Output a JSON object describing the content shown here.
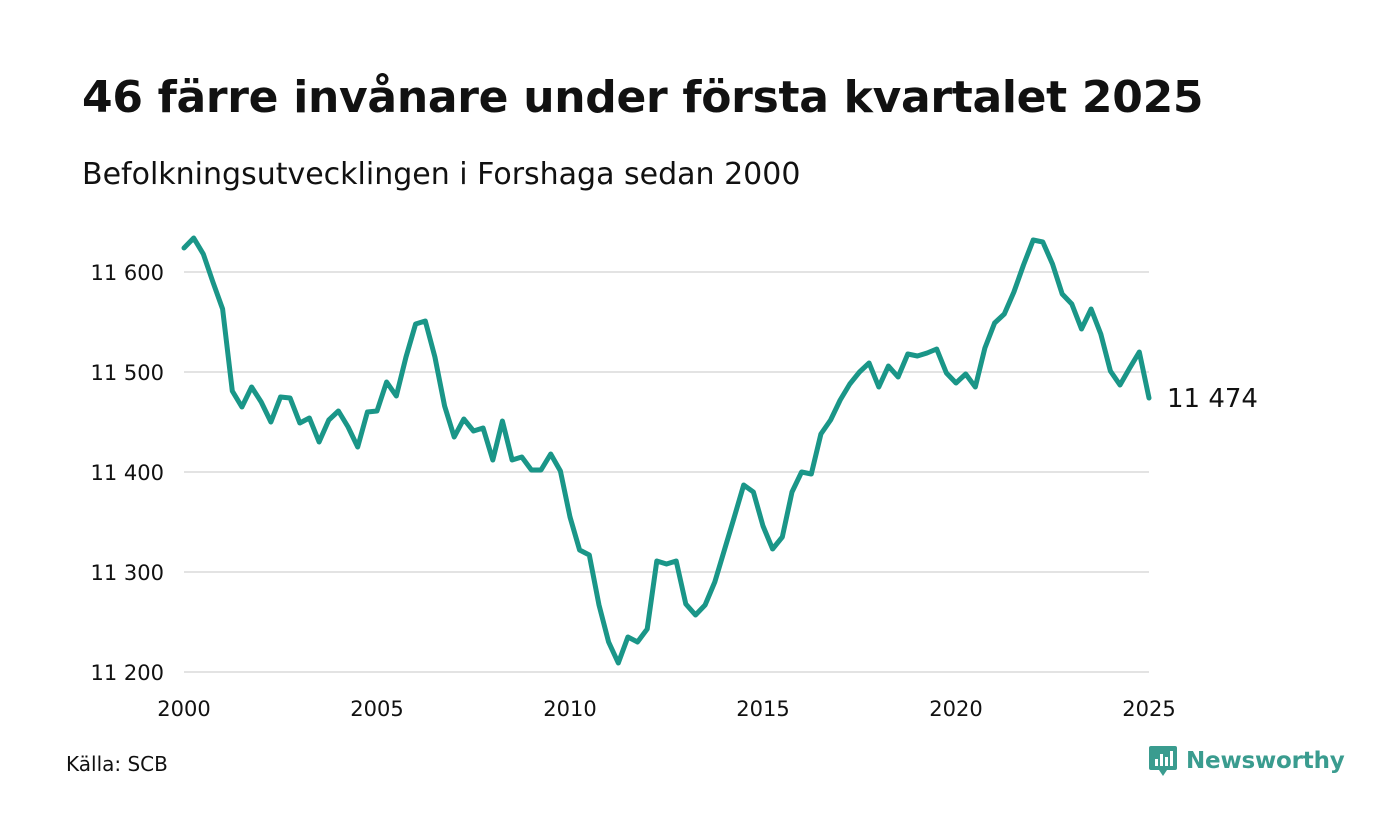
{
  "header": {
    "title": "46 färre invånare under första kvartalet 2025",
    "subtitle": "Befolkningsutvecklingen i Forshaga sedan 2000"
  },
  "footer": {
    "source": "Källa: SCB",
    "brand": "Newsworthy",
    "brand_icon": "newsworthy-logo-icon"
  },
  "colors": {
    "line": "#1a9688",
    "grid": "#e3e3e3",
    "brand": "#3a9c8f"
  },
  "chart_data": {
    "type": "line",
    "title": "46 färre invånare under första kvartalet 2025",
    "subtitle": "Befolkningsutvecklingen i Forshaga sedan 2000",
    "xlabel": "",
    "ylabel": "",
    "xlim": [
      2000,
      2025
    ],
    "ylim": [
      11200,
      11650
    ],
    "x_ticks": [
      2000,
      2005,
      2010,
      2015,
      2020,
      2025
    ],
    "x_tick_labels": [
      "2000",
      "2005",
      "2010",
      "2015",
      "2020",
      "2025"
    ],
    "y_ticks": [
      11200,
      11300,
      11400,
      11500,
      11600
    ],
    "y_tick_labels": [
      "11 200",
      "11 300",
      "11 400",
      "11 500",
      "11 600"
    ],
    "grid": "horizontal",
    "end_label": "11 474",
    "series": [
      {
        "x": [
          2000.0,
          2000.25,
          2000.5,
          2000.75,
          2001.0,
          2001.25,
          2001.5,
          2001.75,
          2002.0,
          2002.25,
          2002.5,
          2002.75,
          2003.0,
          2003.25,
          2003.5,
          2003.75,
          2004.0,
          2004.25,
          2004.5,
          2004.75,
          2005.0,
          2005.25,
          2005.5,
          2005.75,
          2006.0,
          2006.25,
          2006.5,
          2006.75,
          2007.0,
          2007.25,
          2007.5,
          2007.75,
          2008.0,
          2008.25,
          2008.5,
          2008.75,
          2009.0,
          2009.25,
          2009.5,
          2009.75,
          2010.0,
          2010.25,
          2010.5,
          2010.75,
          2011.0,
          2011.25,
          2011.5,
          2011.75,
          2012.0,
          2012.25,
          2012.5,
          2012.75,
          2013.0,
          2013.25,
          2013.5,
          2013.75,
          2014.0,
          2014.25,
          2014.5,
          2014.75,
          2015.0,
          2015.25,
          2015.5,
          2015.75,
          2016.0,
          2016.25,
          2016.5,
          2016.75,
          2017.0,
          2017.25,
          2017.5,
          2017.75,
          2018.0,
          2018.25,
          2018.5,
          2018.75,
          2019.0,
          2019.25,
          2019.5,
          2019.75,
          2020.0,
          2020.25,
          2020.5,
          2020.75,
          2021.0,
          2021.25,
          2021.5,
          2021.75,
          2022.0,
          2022.25,
          2022.5,
          2022.75,
          2023.0,
          2023.25,
          2023.5,
          2023.75,
          2024.0,
          2024.25,
          2024.5,
          2024.75,
          2025.0
        ],
        "values": [
          11624,
          11634,
          11618,
          11590,
          11563,
          11481,
          11465,
          11485,
          11470,
          11450,
          11475,
          11474,
          11449,
          11454,
          11430,
          11452,
          11461,
          11445,
          11425,
          11460,
          11461,
          11490,
          11476,
          11515,
          11548,
          11551,
          11515,
          11466,
          11435,
          11453,
          11441,
          11444,
          11412,
          11451,
          11412,
          11415,
          11402,
          11402,
          11418,
          11401,
          11355,
          11322,
          11317,
          11267,
          11230,
          11209,
          11235,
          11230,
          11243,
          11311,
          11308,
          11311,
          11268,
          11257,
          11267,
          11290,
          11322,
          11354,
          11387,
          11380,
          11346,
          11323,
          11335,
          11380,
          11400,
          11398,
          11438,
          11452,
          11472,
          11488,
          11500,
          11509,
          11485,
          11506,
          11495,
          11518,
          11516,
          11519,
          11523,
          11499,
          11489,
          11498,
          11485,
          11524,
          11549,
          11558,
          11580,
          11607,
          11632,
          11630,
          11608,
          11578,
          11568,
          11543,
          11563,
          11538,
          11501,
          11487,
          11504,
          11520,
          11474
        ]
      }
    ]
  }
}
